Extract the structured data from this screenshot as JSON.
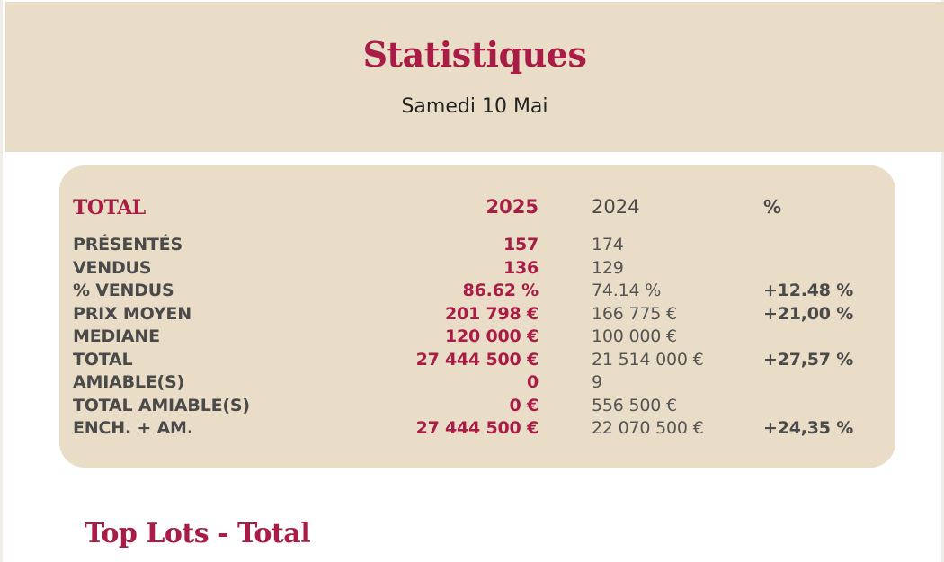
{
  "header": {
    "title": "Statistiques",
    "date": "Samedi 10 Mai"
  },
  "stats": {
    "columns": {
      "label": "TOTAL",
      "current_year": "2025",
      "previous_year": "2024",
      "change": "%"
    },
    "rows": [
      {
        "label": "PRÉSENTÉS",
        "current": "157",
        "previous": "174",
        "change": ""
      },
      {
        "label": "VENDUS",
        "current": "136",
        "previous": "129",
        "change": ""
      },
      {
        "label": "% VENDUS",
        "current": "86.62 %",
        "previous": "74.14 %",
        "change": "+12.48 %"
      },
      {
        "label": "PRIX MOYEN",
        "current": "201 798 €",
        "previous": "166 775 €",
        "change": "+21,00 %"
      },
      {
        "label": "MEDIANE",
        "current": "120 000 €",
        "previous": "100 000 €",
        "change": ""
      },
      {
        "label": "TOTAL",
        "current": "27 444 500 €",
        "previous": "21 514 000 €",
        "change": "+27,57 %"
      },
      {
        "label": "AMIABLE(S)",
        "current": "0",
        "previous": "9",
        "change": ""
      },
      {
        "label": "TOTAL AMIABLE(S)",
        "current": "0 €",
        "previous": "556 500 €",
        "change": ""
      },
      {
        "label": "ENCH. + AM.",
        "current": "27 444 500 €",
        "previous": "22 070 500 €",
        "change": "+24,35 %"
      }
    ]
  },
  "top_lots": {
    "title": "Top Lots - Total"
  },
  "colors": {
    "accent": "#a81c45",
    "panel": "#eaddc7",
    "text": "#4a4a4a"
  }
}
